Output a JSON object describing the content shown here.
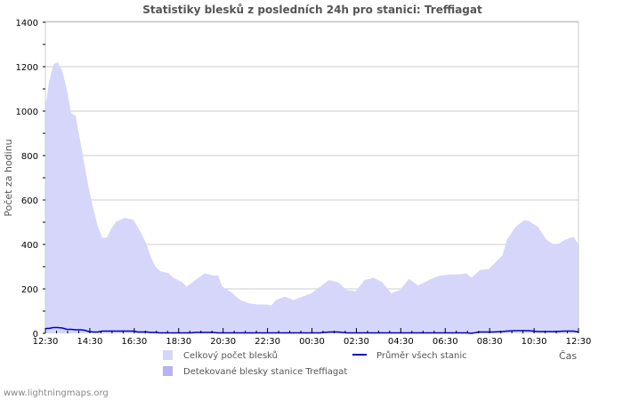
{
  "title": "Statistiky blesků z posledních 24h pro stanici: Treffiagat",
  "footer": "www.lightningmaps.org",
  "colors": {
    "total_area": "#d6d6fb",
    "station_area": "#b3b3f5",
    "average_line": "#0000cc",
    "grid": "#cccccc",
    "title": "#555555"
  },
  "legend": [
    {
      "label": "Celkový počet blesků",
      "kind": "area",
      "color": "#d6d6fb"
    },
    {
      "label": "Detekované blesky stanice Treffiagat",
      "kind": "area",
      "color": "#b3b3f5"
    },
    {
      "label": "Průměr všech stanic",
      "kind": "line",
      "color": "#0000cc"
    }
  ],
  "chart_data": {
    "type": "area",
    "title": "Statistiky blesků z posledních 24h pro stanici: Treffiagat",
    "xlabel": "Čas",
    "ylabel": "Počet za hodinu",
    "ylim": [
      0,
      1400
    ],
    "yticks": [
      0,
      200,
      400,
      600,
      800,
      1000,
      1200,
      1400
    ],
    "xticks": [
      "12:30",
      "14:30",
      "16:30",
      "18:30",
      "20:30",
      "22:30",
      "00:30",
      "02:30",
      "04:30",
      "06:30",
      "08:30",
      "10:30",
      "12:30"
    ],
    "grid": true,
    "legend_position": "bottom",
    "x_hours": [
      0,
      0.16,
      0.36,
      0.56,
      0.76,
      0.96,
      1.16,
      1.36,
      1.56,
      1.76,
      1.96,
      2.16,
      2.36,
      2.56,
      2.76,
      2.96,
      3.16,
      3.56,
      3.96,
      4.16,
      4.36,
      4.56,
      4.76,
      4.96,
      5.16,
      5.56,
      5.76,
      6.16,
      6.36,
      6.56,
      6.76,
      7.16,
      7.57,
      7.77,
      7.97,
      8.37,
      8.77,
      9.17,
      9.57,
      9.97,
      10.17,
      10.37,
      10.77,
      11.17,
      11.57,
      11.97,
      12.37,
      12.77,
      13.17,
      13.57,
      13.97,
      14.37,
      14.77,
      15.17,
      15.57,
      15.97,
      16.37,
      16.77,
      16.97,
      17.37,
      17.77,
      18.17,
      18.57,
      18.97,
      19.17,
      19.57,
      19.97,
      20.17,
      20.57,
      20.77,
      21.17,
      21.57,
      21.77,
      22.17,
      22.57,
      22.97,
      23.37,
      23.77,
      24.0
    ],
    "series": [
      {
        "name": "Celkový počet blesků",
        "values": [
          1020,
          1130,
          1210,
          1220,
          1180,
          1100,
          990,
          980,
          870,
          760,
          650,
          560,
          480,
          430,
          430,
          470,
          500,
          520,
          510,
          480,
          440,
          400,
          340,
          300,
          280,
          270,
          250,
          230,
          210,
          225,
          240,
          270,
          260,
          260,
          210,
          185,
          150,
          135,
          130,
          130,
          125,
          150,
          165,
          150,
          165,
          180,
          210,
          240,
          230,
          195,
          190,
          240,
          250,
          230,
          180,
          195,
          245,
          215,
          225,
          245,
          260,
          265,
          265,
          270,
          250,
          285,
          290,
          310,
          350,
          420,
          480,
          510,
          505,
          480,
          420,
          395,
          420,
          435,
          400
        ]
      },
      {
        "name": "Detekované blesky stanice Treffiagat",
        "values": []
      },
      {
        "name": "Průměr všech stanic",
        "values": [
          22,
          22,
          26,
          26,
          24,
          18,
          18,
          16,
          16,
          14,
          8,
          6,
          6,
          10,
          10,
          10,
          10,
          10,
          10,
          6,
          6,
          6,
          4,
          4,
          2,
          2,
          2,
          2,
          2,
          2,
          4,
          4,
          4,
          2,
          2,
          2,
          2,
          2,
          2,
          2,
          2,
          2,
          2,
          2,
          2,
          2,
          2,
          6,
          6,
          2,
          2,
          2,
          2,
          2,
          2,
          2,
          2,
          2,
          2,
          2,
          2,
          2,
          2,
          2,
          0,
          6,
          6,
          6,
          8,
          10,
          12,
          12,
          12,
          8,
          8,
          8,
          10,
          10,
          6
        ]
      }
    ]
  }
}
